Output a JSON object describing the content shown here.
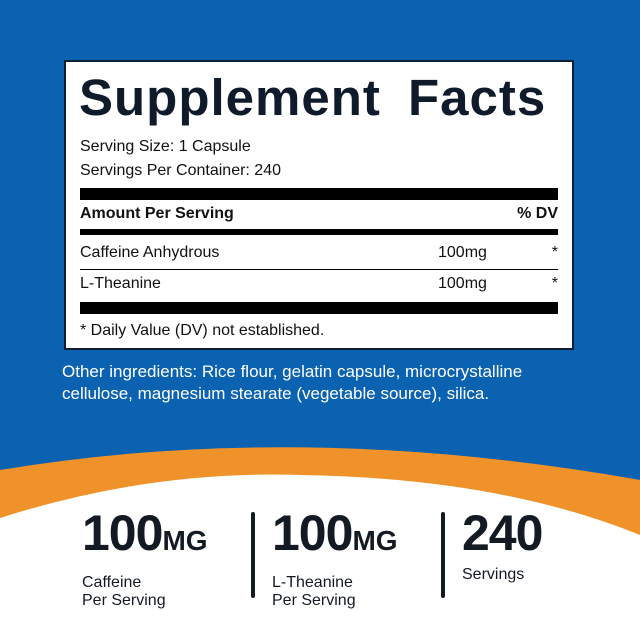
{
  "colors": {
    "background": "#0a62b0",
    "accent": "#f0922a",
    "text": "#131a24"
  },
  "facts": {
    "title": "Supplement Facts",
    "serving_size": "Serving Size: 1 Capsule",
    "servings_per_container": "Servings Per Container: 240",
    "header_left": "Amount Per Serving",
    "header_right": "% DV",
    "rows": [
      {
        "name": "Caffeine Anhydrous",
        "amount": "100mg",
        "dv": "*"
      },
      {
        "name": "L-Theanine",
        "amount": "100mg",
        "dv": "*"
      }
    ],
    "footnote": "* Daily Value (DV) not established."
  },
  "other_ingredients": "Other ingredients: Rice flour, gelatin capsule, microcrystalline cellulose, magnesium stearate (vegetable source), silica.",
  "stats": [
    {
      "value": "100",
      "unit": "MG",
      "label1": "Caffeine",
      "label2": "Per Serving"
    },
    {
      "value": "100",
      "unit": "MG",
      "label1": "L-Theanine",
      "label2": "Per Serving"
    },
    {
      "value": "240",
      "unit": "",
      "label1": "Servings",
      "label2": ""
    }
  ]
}
